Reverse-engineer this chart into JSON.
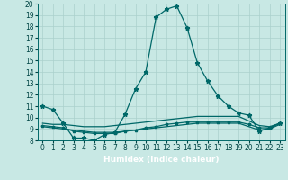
{
  "title": "",
  "xlabel": "Humidex (Indice chaleur)",
  "ylabel": "",
  "background_color": "#c8e8e4",
  "plot_bg_color": "#c8e8e4",
  "line_color": "#006868",
  "grid_color": "#aad0cc",
  "xlabel_bg": "#3a7878",
  "xlabel_fg": "#ffffff",
  "xlim": [
    0,
    23
  ],
  "ylim": [
    8,
    20
  ],
  "yticks": [
    8,
    9,
    10,
    11,
    12,
    13,
    14,
    15,
    16,
    17,
    18,
    19,
    20
  ],
  "xticks": [
    0,
    1,
    2,
    3,
    4,
    5,
    6,
    7,
    8,
    9,
    10,
    11,
    12,
    13,
    14,
    15,
    16,
    17,
    18,
    19,
    20,
    21,
    22,
    23
  ],
  "line1_x": [
    0,
    1,
    2,
    3,
    4,
    5,
    6,
    7,
    8,
    9,
    10,
    11,
    12,
    13,
    14,
    15,
    16,
    17,
    18,
    19,
    20,
    21,
    22,
    23
  ],
  "line1_y": [
    11.0,
    10.7,
    9.5,
    8.2,
    8.2,
    8.0,
    8.5,
    8.7,
    10.3,
    12.5,
    14.0,
    18.8,
    19.5,
    19.8,
    17.9,
    14.8,
    13.2,
    11.9,
    11.0,
    10.4,
    10.2,
    8.8,
    9.1,
    9.5
  ],
  "line2_x": [
    0,
    1,
    2,
    3,
    4,
    5,
    6,
    7,
    8,
    9,
    10,
    11,
    12,
    13,
    14,
    15,
    16,
    17,
    18,
    19,
    20,
    21,
    22,
    23
  ],
  "line2_y": [
    9.5,
    9.4,
    9.4,
    9.3,
    9.2,
    9.2,
    9.2,
    9.3,
    9.4,
    9.5,
    9.6,
    9.7,
    9.8,
    9.9,
    10.0,
    10.1,
    10.1,
    10.1,
    10.1,
    10.1,
    9.7,
    9.3,
    9.2,
    9.5
  ],
  "line3_x": [
    0,
    1,
    2,
    3,
    4,
    5,
    6,
    7,
    8,
    9,
    10,
    11,
    12,
    13,
    14,
    15,
    16,
    17,
    18,
    19,
    20,
    21,
    22,
    23
  ],
  "line3_y": [
    9.2,
    9.1,
    9.0,
    8.9,
    8.8,
    8.7,
    8.7,
    8.7,
    8.8,
    8.9,
    9.0,
    9.1,
    9.2,
    9.3,
    9.4,
    9.5,
    9.5,
    9.5,
    9.5,
    9.5,
    9.2,
    8.9,
    9.0,
    9.4
  ],
  "line4_x": [
    0,
    1,
    2,
    3,
    4,
    5,
    6,
    7,
    8,
    9,
    10,
    11,
    12,
    13,
    14,
    15,
    16,
    17,
    18,
    19,
    20,
    21,
    22,
    23
  ],
  "line4_y": [
    9.3,
    9.2,
    9.1,
    8.8,
    8.7,
    8.6,
    8.6,
    8.6,
    8.8,
    8.9,
    9.1,
    9.2,
    9.4,
    9.5,
    9.6,
    9.6,
    9.6,
    9.6,
    9.6,
    9.6,
    9.4,
    9.1,
    9.1,
    9.5
  ],
  "tick_fontsize": 5.5,
  "xlabel_fontsize": 6.5
}
